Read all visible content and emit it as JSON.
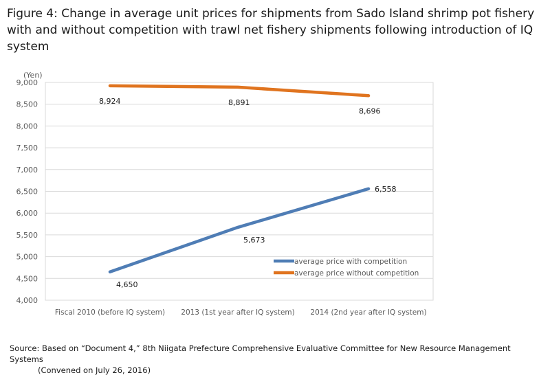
{
  "title_lines": [
    "Figure 4: Change in average unit prices for shipments from Sado Island shrimp pot fishery",
    "with and without competition with trawl net fishery shipments following introduction of IQ",
    "system"
  ],
  "source_lines": [
    "Source: Based on “Document 4,” 8th Niigata Prefecture Comprehensive Evaluative Committee for New Resource Management Systems",
    "(Convened on July 26, 2016)"
  ],
  "chart_data": {
    "type": "line",
    "ylabel": "(Yen)",
    "ylim": [
      4000,
      9000
    ],
    "yticks": [
      4000,
      4500,
      5000,
      5500,
      6000,
      6500,
      7000,
      7500,
      8000,
      8500,
      9000
    ],
    "ytick_labels": [
      "4,000",
      "4,500",
      "5,000",
      "5,500",
      "6,000",
      "6,500",
      "7,000",
      "7,500",
      "8,000",
      "8,500",
      "9,000"
    ],
    "grid": true,
    "legend_position": "lower-right inside plot",
    "categories": [
      "Fiscal 2010 (before IQ system)",
      "2013 (1st year after IQ system)",
      "2014 (2nd year after IQ system)"
    ],
    "series": [
      {
        "name": "average price with competition",
        "color": "#4f7db5",
        "values": [
          4650,
          5673,
          6558
        ],
        "labels": [
          "4,650",
          "5,673",
          "6,558"
        ]
      },
      {
        "name": "average price without competition",
        "color": "#e0741f",
        "values": [
          8924,
          8891,
          8696
        ],
        "labels": [
          "8,924",
          "8,891",
          "8,696"
        ]
      }
    ]
  }
}
